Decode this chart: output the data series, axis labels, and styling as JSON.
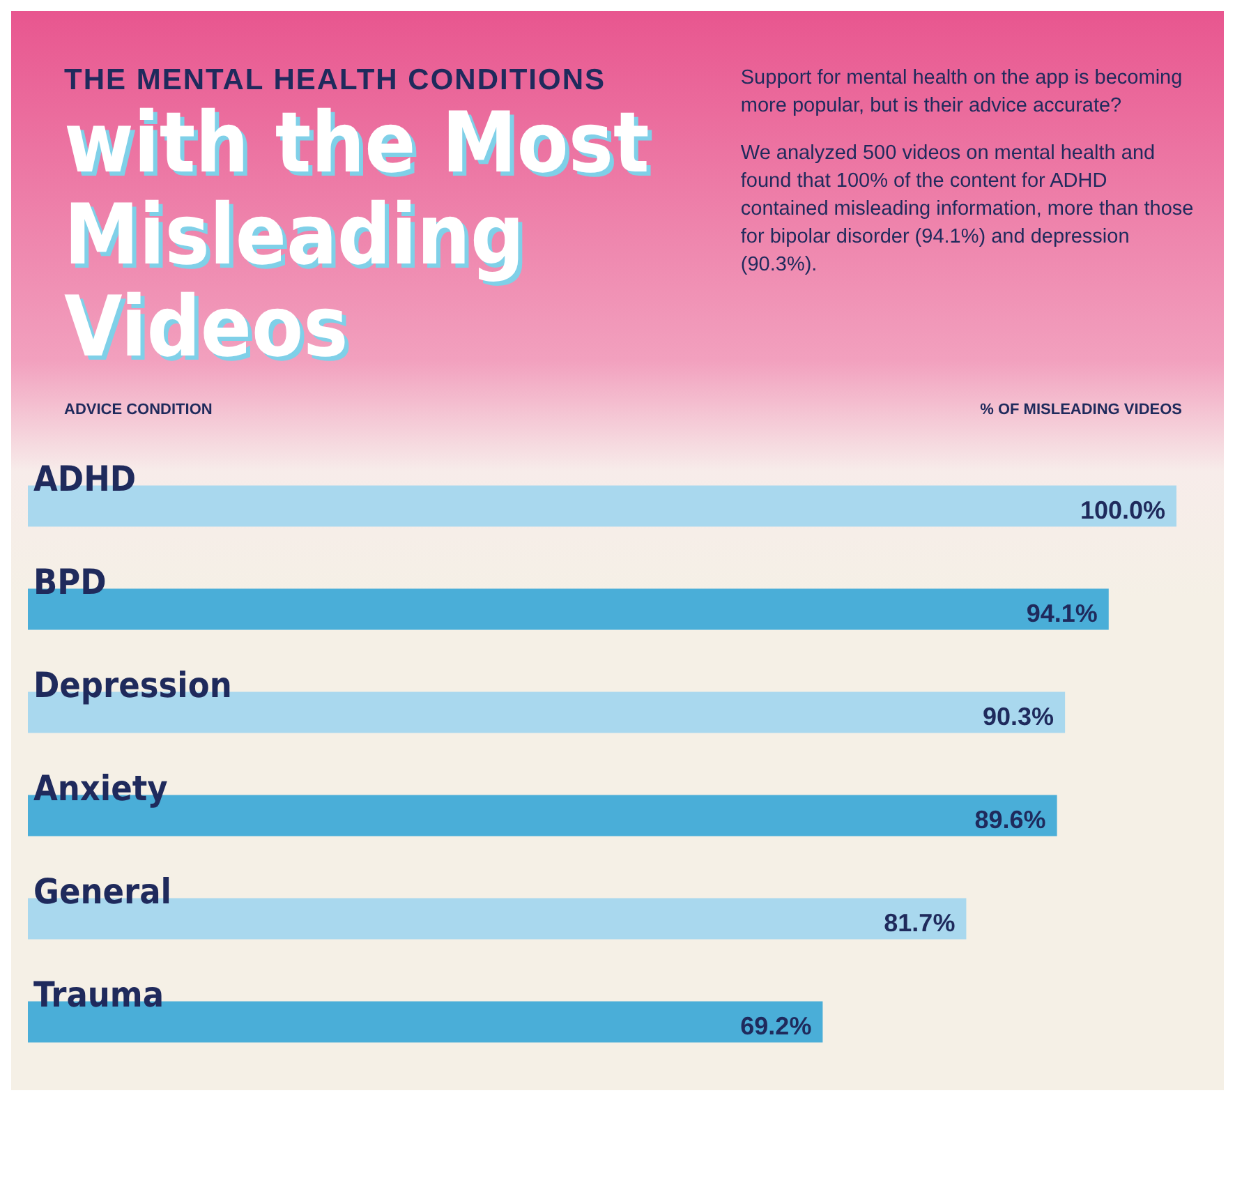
{
  "chart_data": {
    "type": "bar",
    "orientation": "horizontal",
    "title": "THE MENTAL HEALTH CONDITIONS",
    "subtitle": "with the Most Misleading Videos",
    "ylabel": "ADVICE CONDITION",
    "xlabel": "% OF MISLEADING VIDEOS",
    "annotations": [
      "Support for mental health on the app is becoming more popular, but is their advice accurate?",
      "We analyzed 500 videos on mental health and found that 100% of the content for ADHD contained misleading information, more than those for bipolar disorder (94.1%) and depression (90.3%)."
    ],
    "categories": [
      "ADHD",
      "BPD",
      "Depression",
      "Anxiety",
      "General",
      "Trauma"
    ],
    "values": [
      100.0,
      94.1,
      90.3,
      89.6,
      81.7,
      69.2
    ],
    "value_labels": [
      "100.0%",
      "94.1%",
      "90.3%",
      "89.6%",
      "81.7%",
      "69.2%"
    ],
    "colors": [
      "#a9d8ee",
      "#4aaed8",
      "#a9d8ee",
      "#4aaed8",
      "#a9d8ee",
      "#4aaed8"
    ],
    "xlim": [
      0,
      100
    ],
    "tick_labels": "y"
  }
}
